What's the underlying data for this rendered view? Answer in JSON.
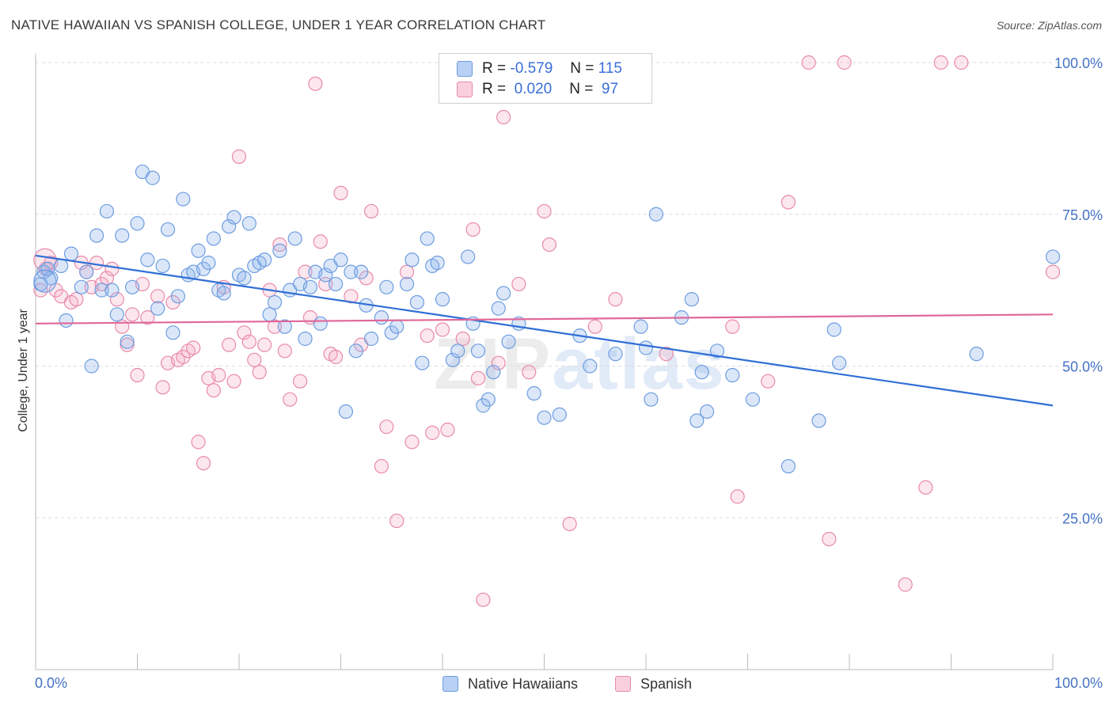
{
  "chart_data": {
    "type": "scatter",
    "title": "NATIVE HAWAIIAN VS SPANISH COLLEGE, UNDER 1 YEAR CORRELATION CHART",
    "source": "Source: ZipAtlas.com",
    "xlabel": "",
    "ylabel": "College, Under 1 year",
    "xlim": [
      0,
      100
    ],
    "ylim": [
      0,
      100
    ],
    "x_tick_labels": [
      "0.0%",
      "100.0%"
    ],
    "y_ticks": [
      25,
      50,
      75,
      100
    ],
    "y_tick_labels": [
      "25.0%",
      "50.0%",
      "75.0%",
      "100.0%"
    ],
    "watermark": [
      "ZIP",
      "atlas"
    ],
    "legend_stats": [
      {
        "r_label": "R =",
        "r_value": "-0.579",
        "n_label": "N =",
        "n_value": "115"
      },
      {
        "r_label": "R =",
        "r_value": "0.020",
        "n_label": "N =",
        "n_value": "97"
      }
    ],
    "series": [
      {
        "name": "Native Hawaiians",
        "color": "#8fb4ec",
        "edge": "#6d9de0",
        "trend_color": "#2f6fd6",
        "trend": [
          [
            0,
            68.2
          ],
          [
            100,
            43.5
          ]
        ],
        "points": [
          [
            0.5,
            63.5
          ],
          [
            0.8,
            65.5
          ],
          [
            1.2,
            66.0
          ],
          [
            1.5,
            64.5
          ],
          [
            2.5,
            66.5
          ],
          [
            3.0,
            57.5
          ],
          [
            3.5,
            68.5
          ],
          [
            4.5,
            63.0
          ],
          [
            5.0,
            65.5
          ],
          [
            5.5,
            50.0
          ],
          [
            6.0,
            71.5
          ],
          [
            6.5,
            62.5
          ],
          [
            7.0,
            75.5
          ],
          [
            7.5,
            62.5
          ],
          [
            8.0,
            58.5
          ],
          [
            8.5,
            71.5
          ],
          [
            9.0,
            54.0
          ],
          [
            9.5,
            63.0
          ],
          [
            10.0,
            73.5
          ],
          [
            10.5,
            82.0
          ],
          [
            11.0,
            67.5
          ],
          [
            11.5,
            81.0
          ],
          [
            12.0,
            59.5
          ],
          [
            12.5,
            66.5
          ],
          [
            13.0,
            72.5
          ],
          [
            13.5,
            55.5
          ],
          [
            14.0,
            61.5
          ],
          [
            14.5,
            77.5
          ],
          [
            15.0,
            65.0
          ],
          [
            15.5,
            65.5
          ],
          [
            16.0,
            69.0
          ],
          [
            16.5,
            66.0
          ],
          [
            17.0,
            67.0
          ],
          [
            17.5,
            71.0
          ],
          [
            18.0,
            62.5
          ],
          [
            18.5,
            62.0
          ],
          [
            19.0,
            73.0
          ],
          [
            19.5,
            74.5
          ],
          [
            20.0,
            65.0
          ],
          [
            20.5,
            64.5
          ],
          [
            21.0,
            73.5
          ],
          [
            21.5,
            66.5
          ],
          [
            22.0,
            67.0
          ],
          [
            22.5,
            67.5
          ],
          [
            23.0,
            58.5
          ],
          [
            23.5,
            60.5
          ],
          [
            24.0,
            69.0
          ],
          [
            24.5,
            56.5
          ],
          [
            25.0,
            62.5
          ],
          [
            25.5,
            71.0
          ],
          [
            26.0,
            63.5
          ],
          [
            26.5,
            54.5
          ],
          [
            27.0,
            63.0
          ],
          [
            27.5,
            65.5
          ],
          [
            28.0,
            57.0
          ],
          [
            28.5,
            65.0
          ],
          [
            29.0,
            66.5
          ],
          [
            29.5,
            63.5
          ],
          [
            30.0,
            67.5
          ],
          [
            30.5,
            42.5
          ],
          [
            31.0,
            65.5
          ],
          [
            31.5,
            52.5
          ],
          [
            32.0,
            65.5
          ],
          [
            32.5,
            60.0
          ],
          [
            33.0,
            54.5
          ],
          [
            34.0,
            58.0
          ],
          [
            34.5,
            63.0
          ],
          [
            35.0,
            55.5
          ],
          [
            35.5,
            56.5
          ],
          [
            36.5,
            63.5
          ],
          [
            37.0,
            67.5
          ],
          [
            37.5,
            60.5
          ],
          [
            38.0,
            50.5
          ],
          [
            38.5,
            71.0
          ],
          [
            39.0,
            66.5
          ],
          [
            39.5,
            67.0
          ],
          [
            40.0,
            61.0
          ],
          [
            41.0,
            51.0
          ],
          [
            41.5,
            52.5
          ],
          [
            42.5,
            68.0
          ],
          [
            43.0,
            57.0
          ],
          [
            43.5,
            52.5
          ],
          [
            44.0,
            43.5
          ],
          [
            44.5,
            44.5
          ],
          [
            45.0,
            49.0
          ],
          [
            45.5,
            59.5
          ],
          [
            46.0,
            62.0
          ],
          [
            46.5,
            54.0
          ],
          [
            47.5,
            57.0
          ],
          [
            49.0,
            45.5
          ],
          [
            50.0,
            41.5
          ],
          [
            51.5,
            42.0
          ],
          [
            53.5,
            55.0
          ],
          [
            54.5,
            50.0
          ],
          [
            57.0,
            52.0
          ],
          [
            59.5,
            56.5
          ],
          [
            60.0,
            53.0
          ],
          [
            60.5,
            44.5
          ],
          [
            61.0,
            75.0
          ],
          [
            63.5,
            58.0
          ],
          [
            64.5,
            61.0
          ],
          [
            65.0,
            41.0
          ],
          [
            65.5,
            49.0
          ],
          [
            66.0,
            42.5
          ],
          [
            67.0,
            52.5
          ],
          [
            68.5,
            48.5
          ],
          [
            70.5,
            44.5
          ],
          [
            74.0,
            33.5
          ],
          [
            77.0,
            41.0
          ],
          [
            78.5,
            56.0
          ],
          [
            79.0,
            50.5
          ],
          [
            92.5,
            52.0
          ],
          [
            100.0,
            68.0
          ]
        ],
        "bubble": [
          0.3,
          64.0
        ]
      },
      {
        "name": "Spanish",
        "color": "#f4aec6",
        "edge": "#e88aab",
        "trend_color": "#e0689a",
        "trend": [
          [
            0,
            57.0
          ],
          [
            100,
            58.5
          ]
        ],
        "points": [
          [
            0.5,
            62.5
          ],
          [
            1.0,
            66.0
          ],
          [
            1.5,
            67.0
          ],
          [
            2.0,
            62.5
          ],
          [
            2.5,
            61.5
          ],
          [
            3.5,
            60.5
          ],
          [
            4.0,
            61.0
          ],
          [
            4.5,
            67.0
          ],
          [
            5.0,
            65.5
          ],
          [
            5.5,
            63.0
          ],
          [
            6.0,
            67.0
          ],
          [
            6.5,
            63.5
          ],
          [
            7.0,
            64.5
          ],
          [
            7.5,
            66.0
          ],
          [
            8.0,
            61.0
          ],
          [
            8.5,
            56.5
          ],
          [
            9.0,
            53.5
          ],
          [
            9.5,
            58.5
          ],
          [
            10.0,
            48.5
          ],
          [
            10.5,
            63.5
          ],
          [
            11.0,
            58.0
          ],
          [
            12.0,
            61.5
          ],
          [
            12.5,
            46.5
          ],
          [
            13.0,
            50.5
          ],
          [
            13.5,
            60.5
          ],
          [
            14.0,
            51.0
          ],
          [
            14.5,
            51.5
          ],
          [
            15.0,
            52.5
          ],
          [
            15.5,
            53.0
          ],
          [
            16.0,
            37.5
          ],
          [
            16.5,
            34.0
          ],
          [
            17.0,
            48.0
          ],
          [
            17.5,
            46.0
          ],
          [
            18.0,
            48.5
          ],
          [
            18.5,
            63.0
          ],
          [
            19.0,
            53.5
          ],
          [
            19.5,
            47.5
          ],
          [
            20.0,
            84.5
          ],
          [
            20.5,
            55.5
          ],
          [
            21.0,
            54.0
          ],
          [
            21.5,
            51.0
          ],
          [
            22.0,
            49.0
          ],
          [
            22.5,
            53.5
          ],
          [
            23.0,
            62.5
          ],
          [
            23.5,
            56.5
          ],
          [
            24.0,
            70.0
          ],
          [
            24.5,
            52.5
          ],
          [
            25.0,
            44.5
          ],
          [
            26.0,
            47.5
          ],
          [
            26.5,
            65.5
          ],
          [
            27.0,
            58.0
          ],
          [
            27.5,
            96.5
          ],
          [
            28.0,
            70.5
          ],
          [
            28.5,
            63.5
          ],
          [
            29.0,
            52.0
          ],
          [
            29.5,
            51.5
          ],
          [
            30.0,
            78.5
          ],
          [
            31.0,
            61.5
          ],
          [
            32.0,
            53.5
          ],
          [
            32.5,
            64.5
          ],
          [
            33.0,
            75.5
          ],
          [
            34.0,
            33.5
          ],
          [
            34.5,
            40.0
          ],
          [
            35.5,
            24.5
          ],
          [
            36.5,
            65.5
          ],
          [
            37.0,
            37.5
          ],
          [
            38.5,
            55.0
          ],
          [
            39.0,
            39.0
          ],
          [
            40.0,
            56.0
          ],
          [
            40.5,
            39.5
          ],
          [
            42.0,
            54.5
          ],
          [
            43.0,
            72.5
          ],
          [
            43.5,
            48.0
          ],
          [
            44.0,
            11.5
          ],
          [
            45.5,
            50.5
          ],
          [
            46.0,
            91.0
          ],
          [
            47.5,
            63.5
          ],
          [
            48.5,
            49.0
          ],
          [
            50.0,
            75.5
          ],
          [
            50.5,
            70.0
          ],
          [
            52.5,
            24.0
          ],
          [
            55.0,
            56.5
          ],
          [
            57.0,
            61.0
          ],
          [
            62.0,
            52.0
          ],
          [
            68.5,
            56.5
          ],
          [
            69.0,
            28.5
          ],
          [
            72.0,
            47.5
          ],
          [
            74.0,
            77.0
          ],
          [
            76.0,
            100.0
          ],
          [
            78.0,
            21.5
          ],
          [
            79.5,
            100.0
          ],
          [
            85.5,
            14.0
          ],
          [
            87.5,
            30.0
          ],
          [
            89.0,
            100.0
          ],
          [
            91.0,
            100.0
          ],
          [
            100.0,
            65.5
          ]
        ],
        "bubble": [
          0.3,
          67.5
        ]
      }
    ]
  }
}
